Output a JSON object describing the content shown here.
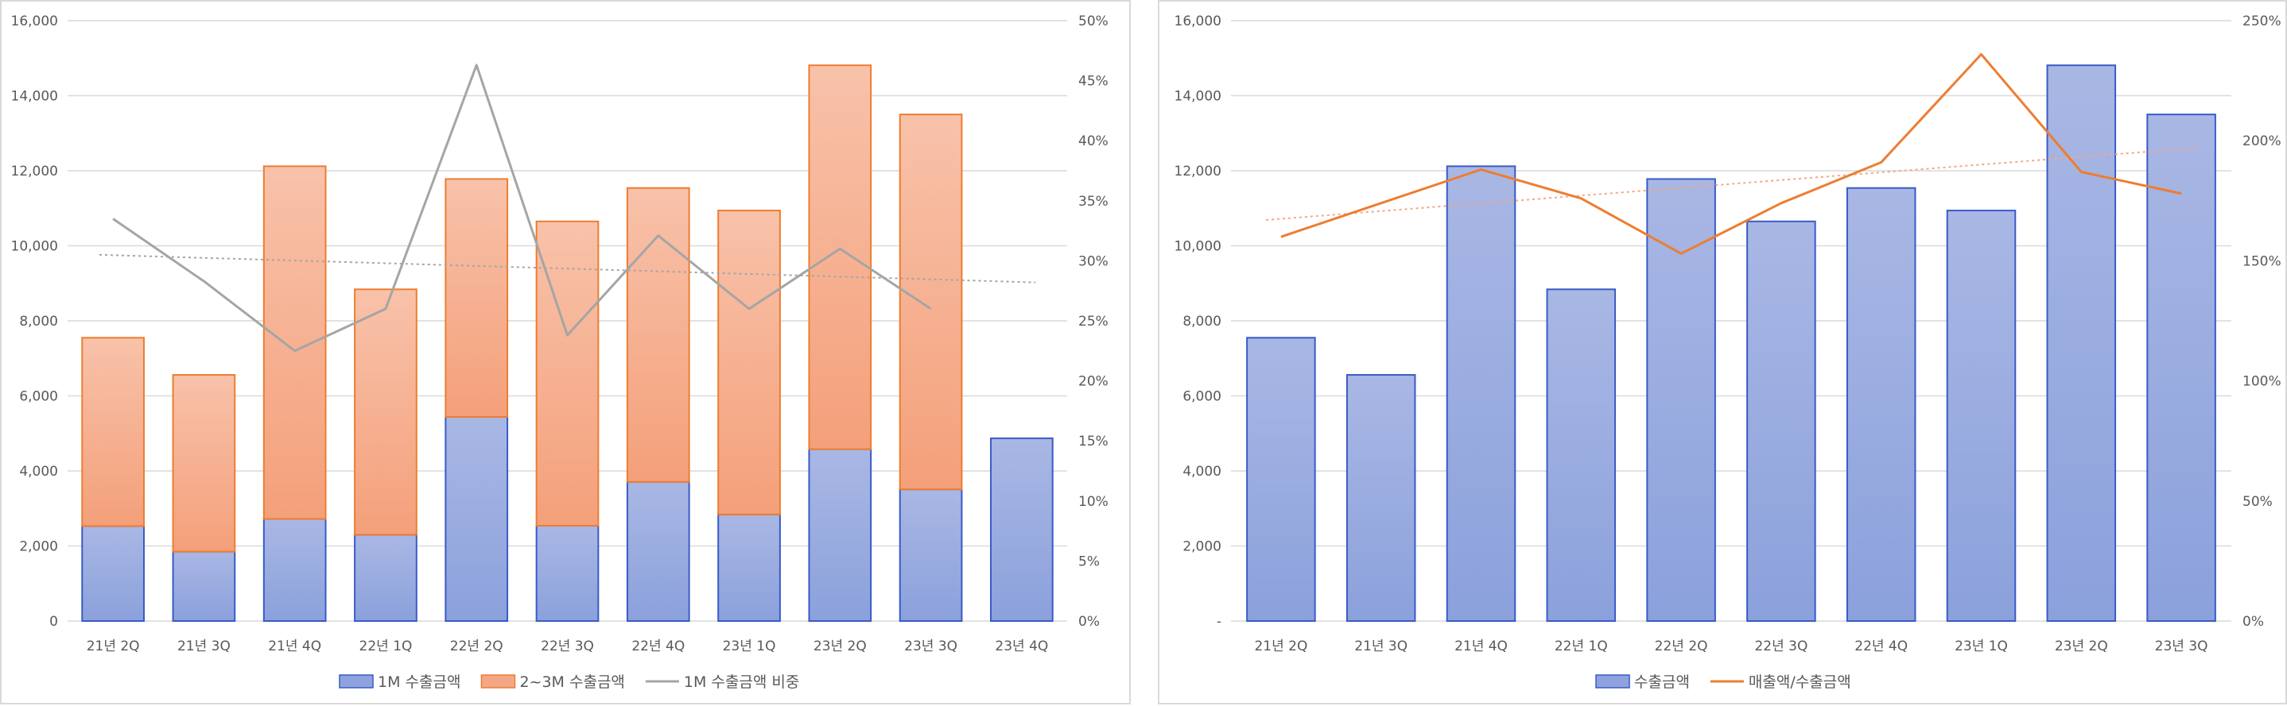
{
  "chart_data": [
    {
      "type": "bar",
      "stacked": true,
      "categories": [
        "21년 2Q",
        "21년 3Q",
        "21년 4Q",
        "22년 1Q",
        "22년 2Q",
        "22년 3Q",
        "22년 4Q",
        "23년 1Q",
        "23년 2Q",
        "23년 3Q",
        "23년 4Q"
      ],
      "series": [
        {
          "name": "1M 수출금액",
          "kind": "bar",
          "axis": "left",
          "color": "#8ea3dd",
          "stroke": "#3a5bc7",
          "values": [
            2530,
            1850,
            2720,
            2300,
            5440,
            2540,
            3710,
            2840,
            4580,
            3510,
            4870
          ]
        },
        {
          "name": "2~3M 수출금액",
          "kind": "bar",
          "axis": "left",
          "color": "#f4a784",
          "stroke": "#ed7d31",
          "values": [
            5020,
            4710,
            9400,
            6540,
            6340,
            8110,
            7830,
            8100,
            10230,
            9990,
            null
          ]
        },
        {
          "name": "1M 수출금액 비중",
          "kind": "line",
          "axis": "right",
          "color": "#a5a5a5",
          "values": [
            33.5,
            28.3,
            22.5,
            26.0,
            46.3,
            23.8,
            32.1,
            26.0,
            31.0,
            26.0,
            null
          ]
        }
      ],
      "trendline": {
        "series": "1M 수출금액 비중",
        "style": "dotted",
        "color": "#a5a5a5",
        "start": 30.5,
        "end": 28.2
      },
      "y_left": {
        "min": 0,
        "max": 16000,
        "ticks": [
          "0",
          "2,000",
          "4,000",
          "6,000",
          "8,000",
          "10,000",
          "12,000",
          "14,000",
          "16,000"
        ]
      },
      "y_right": {
        "min": 0,
        "max": 50,
        "ticks": [
          "0%",
          "5%",
          "10%",
          "15%",
          "20%",
          "25%",
          "30%",
          "35%",
          "40%",
          "45%",
          "50%"
        ]
      },
      "grid": true,
      "legend_position": "bottom"
    },
    {
      "type": "bar",
      "categories": [
        "21년 2Q",
        "21년 3Q",
        "21년 4Q",
        "22년 1Q",
        "22년 2Q",
        "22년 3Q",
        "22년 4Q",
        "23년 1Q",
        "23년 2Q",
        "23년 3Q"
      ],
      "series": [
        {
          "name": "수출금액",
          "kind": "bar",
          "axis": "left",
          "color": "#8ea3dd",
          "stroke": "#3a5bc7",
          "values": [
            7550,
            6560,
            12120,
            8840,
            11780,
            10650,
            11540,
            10940,
            14810,
            13500
          ]
        },
        {
          "name": "매출액/수출금액",
          "kind": "line",
          "axis": "right",
          "color": "#ed7d31",
          "values": [
            160,
            174,
            188,
            176,
            153,
            174,
            191,
            236,
            187,
            178
          ]
        }
      ],
      "trendline": {
        "series": "매출액/수출금액",
        "style": "dotted",
        "color": "#f4a784",
        "start": 167,
        "end": 197
      },
      "y_left": {
        "min": 0,
        "max": 16000,
        "ticks": [
          "-",
          "2,000",
          "4,000",
          "6,000",
          "8,000",
          "10,000",
          "12,000",
          "14,000",
          "16,000"
        ]
      },
      "y_right": {
        "min": 0,
        "max": 250,
        "ticks": [
          "0%",
          "50%",
          "100%",
          "150%",
          "200%",
          "250%"
        ]
      },
      "grid": true,
      "legend_position": "bottom"
    }
  ]
}
